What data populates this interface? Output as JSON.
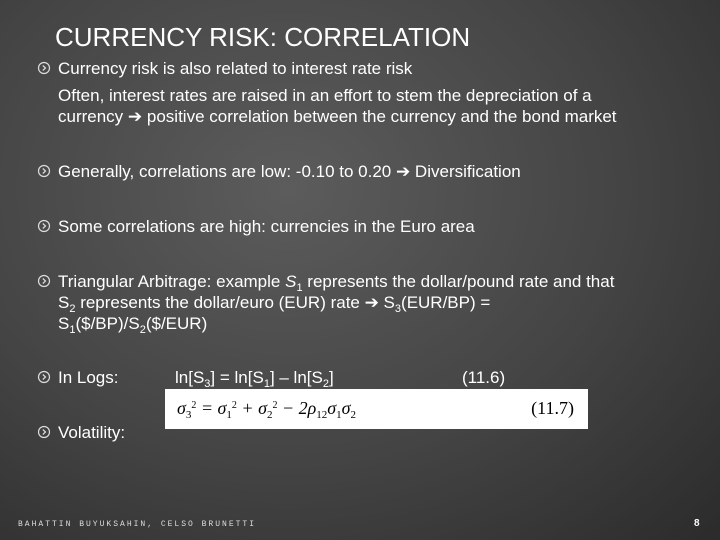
{
  "header": {
    "title": "CURRENCY RISK: CORRELATION"
  },
  "bullets": [
    {
      "text": "Currency risk is also related to interest rate risk",
      "detail": [
        "Often, interest rates are raised in an effort to stem the depreciation of a",
        "currency ➔ positive correlation between the currency and the bond market"
      ]
    },
    {
      "text": "Generally, correlations are low: -0.10 to 0.20 ➔ Diversification"
    },
    {
      "text": "Some correlations are high: currencies in the Euro area"
    },
    {
      "parts": [
        "Triangular Arbitrage: example ",
        "S",
        "1",
        " represents the dollar/pound rate and that",
        "S",
        "2",
        " represents the dollar/euro (EUR) rate ➔ S",
        "3",
        "(EUR/BP) =",
        "S",
        "1",
        "($/BP)/S",
        "2",
        "($/EUR)"
      ]
    },
    {
      "label": "In Logs:",
      "equation": [
        "ln[S",
        "3",
        "] = ln[S",
        "1",
        "] – ln[S",
        "2",
        "]"
      ],
      "number": "(11.6)"
    },
    {
      "label": "Volatility:",
      "equation": [
        "σ",
        "3",
        "2",
        " = σ",
        "1",
        "2",
        " + σ",
        "2",
        "2",
        " − 2ρ",
        "12",
        "σ",
        "1",
        "σ",
        "2"
      ],
      "number": "(11.7)"
    }
  ],
  "footer": {
    "author": "BAHATTIN BUYUKSAHIN, CELSO BRUNETTI",
    "page": "8"
  }
}
